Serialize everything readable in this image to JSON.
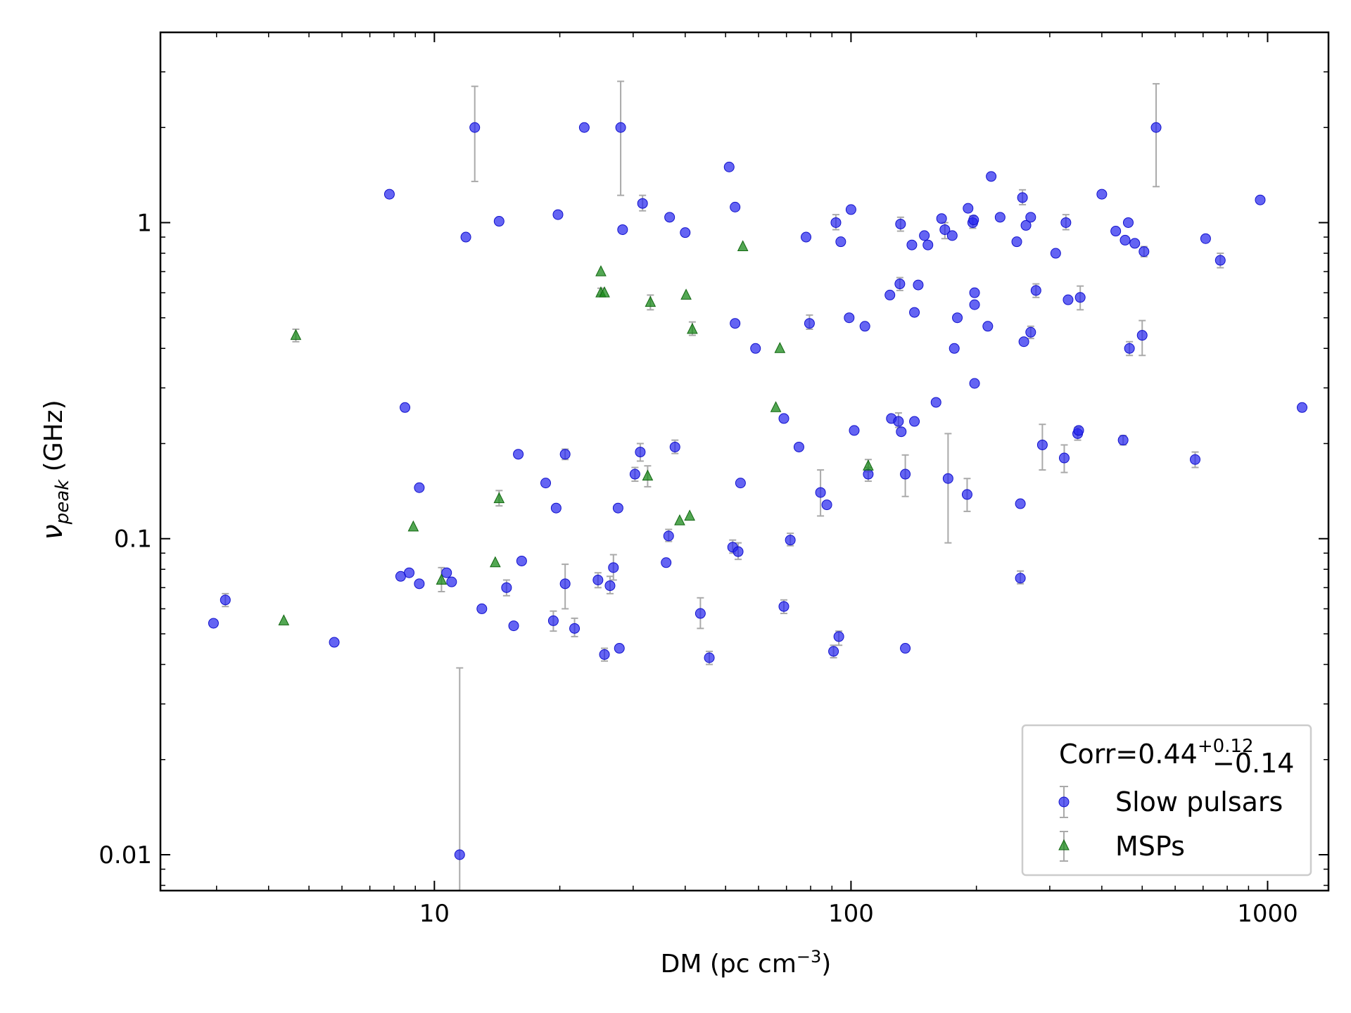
{
  "chart_data": {
    "type": "scatter",
    "xlabel": {
      "main": "DM (pc cm",
      "sup": "−3",
      "close": ")"
    },
    "ylabel": {
      "main": "ν",
      "sub": "peak",
      "unit": " (GHz)"
    },
    "xscale": "log",
    "yscale": "log",
    "xlim": [
      2.2,
      1400
    ],
    "ylim": [
      0.0077,
      4.0
    ],
    "xticks": [
      {
        "value": 10,
        "label": "10"
      },
      {
        "value": 100,
        "label": "100"
      },
      {
        "value": 1000,
        "label": "1000"
      }
    ],
    "yticks": [
      {
        "value": 0.01,
        "label": "0.01"
      },
      {
        "value": 0.1,
        "label": "0.1"
      },
      {
        "value": 1,
        "label": "1"
      }
    ],
    "legend": {
      "position": "bottom-right",
      "title": {
        "main": "Corr=0.44",
        "sup": "+0.12",
        "sub": "−0.14"
      },
      "entries": [
        "Slow pulsars",
        "MSPs"
      ]
    },
    "series": [
      {
        "name": "Slow pulsars",
        "marker": "circle",
        "color": "#2222ee",
        "errorbar_color": "#aaaaaa",
        "points": [
          {
            "x": 2.95,
            "y": 0.054
          },
          {
            "x": 3.15,
            "y": 0.064,
            "ylo": 0.061,
            "yhi": 0.067
          },
          {
            "x": 5.75,
            "y": 0.047
          },
          {
            "x": 7.8,
            "y": 1.23
          },
          {
            "x": 8.3,
            "y": 0.076
          },
          {
            "x": 8.5,
            "y": 0.26
          },
          {
            "x": 8.7,
            "y": 0.078
          },
          {
            "x": 9.2,
            "y": 0.072
          },
          {
            "x": 9.2,
            "y": 0.145
          },
          {
            "x": 10.7,
            "y": 0.078
          },
          {
            "x": 11.0,
            "y": 0.073
          },
          {
            "x": 11.5,
            "y": 0.01,
            "ylo": 0.007,
            "yhi": 0.039
          },
          {
            "x": 11.9,
            "y": 0.9
          },
          {
            "x": 12.5,
            "y": 2.0,
            "ylo": 1.35,
            "yhi": 2.7
          },
          {
            "x": 13.0,
            "y": 0.06
          },
          {
            "x": 14.3,
            "y": 1.01
          },
          {
            "x": 14.9,
            "y": 0.07,
            "ylo": 0.066,
            "yhi": 0.074
          },
          {
            "x": 15.5,
            "y": 0.053
          },
          {
            "x": 15.9,
            "y": 0.185
          },
          {
            "x": 16.2,
            "y": 0.085
          },
          {
            "x": 18.5,
            "y": 0.15
          },
          {
            "x": 19.3,
            "y": 0.055,
            "ylo": 0.051,
            "yhi": 0.059
          },
          {
            "x": 19.6,
            "y": 0.125
          },
          {
            "x": 19.8,
            "y": 1.06
          },
          {
            "x": 20.6,
            "y": 0.185,
            "ylo": 0.178,
            "yhi": 0.192
          },
          {
            "x": 20.6,
            "y": 0.072,
            "ylo": 0.06,
            "yhi": 0.083
          },
          {
            "x": 21.7,
            "y": 0.052,
            "ylo": 0.049,
            "yhi": 0.056
          },
          {
            "x": 22.9,
            "y": 2.0
          },
          {
            "x": 24.7,
            "y": 0.074,
            "ylo": 0.07,
            "yhi": 0.078
          },
          {
            "x": 25.6,
            "y": 0.043,
            "ylo": 0.041,
            "yhi": 0.045
          },
          {
            "x": 26.4,
            "y": 0.071,
            "ylo": 0.067,
            "yhi": 0.076
          },
          {
            "x": 26.9,
            "y": 0.081,
            "ylo": 0.074,
            "yhi": 0.089
          },
          {
            "x": 27.6,
            "y": 0.125
          },
          {
            "x": 27.8,
            "y": 0.045
          },
          {
            "x": 28.0,
            "y": 2.0,
            "ylo": 1.22,
            "yhi": 2.8
          },
          {
            "x": 28.3,
            "y": 0.95
          },
          {
            "x": 30.3,
            "y": 0.16,
            "ylo": 0.152,
            "yhi": 0.168
          },
          {
            "x": 31.2,
            "y": 0.188,
            "ylo": 0.176,
            "yhi": 0.2
          },
          {
            "x": 31.6,
            "y": 1.15,
            "ylo": 1.09,
            "yhi": 1.22
          },
          {
            "x": 36.0,
            "y": 0.084
          },
          {
            "x": 36.5,
            "y": 0.102,
            "ylo": 0.098,
            "yhi": 0.107
          },
          {
            "x": 36.7,
            "y": 1.04
          },
          {
            "x": 37.8,
            "y": 0.195,
            "ylo": 0.186,
            "yhi": 0.205
          },
          {
            "x": 40.0,
            "y": 0.93
          },
          {
            "x": 43.5,
            "y": 0.058,
            "ylo": 0.052,
            "yhi": 0.065
          },
          {
            "x": 45.7,
            "y": 0.042,
            "ylo": 0.04,
            "yhi": 0.044
          },
          {
            "x": 51.0,
            "y": 1.5
          },
          {
            "x": 52.0,
            "y": 0.094,
            "ylo": 0.09,
            "yhi": 0.099
          },
          {
            "x": 52.7,
            "y": 1.12
          },
          {
            "x": 52.7,
            "y": 0.48
          },
          {
            "x": 53.6,
            "y": 0.091,
            "ylo": 0.086,
            "yhi": 0.097
          },
          {
            "x": 54.3,
            "y": 0.15
          },
          {
            "x": 59.0,
            "y": 0.4
          },
          {
            "x": 69.0,
            "y": 0.24
          },
          {
            "x": 69.0,
            "y": 0.061,
            "ylo": 0.058,
            "yhi": 0.064
          },
          {
            "x": 71.5,
            "y": 0.099,
            "ylo": 0.095,
            "yhi": 0.104
          },
          {
            "x": 75.0,
            "y": 0.195
          },
          {
            "x": 78.0,
            "y": 0.9
          },
          {
            "x": 79.5,
            "y": 0.48,
            "ylo": 0.46,
            "yhi": 0.51
          },
          {
            "x": 84.5,
            "y": 0.14,
            "ylo": 0.118,
            "yhi": 0.165
          },
          {
            "x": 87.5,
            "y": 0.128
          },
          {
            "x": 90.8,
            "y": 0.044,
            "ylo": 0.042,
            "yhi": 0.046
          },
          {
            "x": 92.0,
            "y": 1.0,
            "ylo": 0.95,
            "yhi": 1.06
          },
          {
            "x": 93.5,
            "y": 0.049,
            "ylo": 0.046,
            "yhi": 0.051
          },
          {
            "x": 94.5,
            "y": 0.87
          },
          {
            "x": 99.0,
            "y": 0.5
          },
          {
            "x": 100.0,
            "y": 1.1
          },
          {
            "x": 101.8,
            "y": 0.22
          },
          {
            "x": 108.0,
            "y": 0.47
          },
          {
            "x": 110.0,
            "y": 0.16,
            "ylo": 0.152,
            "yhi": 0.168
          },
          {
            "x": 124.0,
            "y": 0.59
          },
          {
            "x": 125.0,
            "y": 0.24
          },
          {
            "x": 130.0,
            "y": 0.235,
            "ylo": 0.225,
            "yhi": 0.25
          },
          {
            "x": 131.0,
            "y": 0.64,
            "ylo": 0.61,
            "yhi": 0.67
          },
          {
            "x": 131.5,
            "y": 0.99,
            "ylo": 0.94,
            "yhi": 1.04
          },
          {
            "x": 132.0,
            "y": 0.218
          },
          {
            "x": 135.0,
            "y": 0.16,
            "ylo": 0.136,
            "yhi": 0.184
          },
          {
            "x": 135.0,
            "y": 0.045
          },
          {
            "x": 140.0,
            "y": 0.85
          },
          {
            "x": 142.0,
            "y": 0.235
          },
          {
            "x": 142.0,
            "y": 0.52
          },
          {
            "x": 145.0,
            "y": 0.635
          },
          {
            "x": 150.0,
            "y": 0.91
          },
          {
            "x": 153.0,
            "y": 0.85
          },
          {
            "x": 160.0,
            "y": 0.27
          },
          {
            "x": 165.0,
            "y": 1.03
          },
          {
            "x": 168.0,
            "y": 0.95,
            "ylo": 0.89,
            "yhi": 1.0
          },
          {
            "x": 171.0,
            "y": 0.155,
            "ylo": 0.097,
            "yhi": 0.215
          },
          {
            "x": 175.0,
            "y": 0.91
          },
          {
            "x": 177.0,
            "y": 0.4
          },
          {
            "x": 180.0,
            "y": 0.5
          },
          {
            "x": 190.0,
            "y": 0.138,
            "ylo": 0.122,
            "yhi": 0.155
          },
          {
            "x": 191.0,
            "y": 1.11
          },
          {
            "x": 196.0,
            "y": 1.0,
            "ylo": 0.96,
            "yhi": 1.05
          },
          {
            "x": 197.0,
            "y": 1.02
          },
          {
            "x": 198.0,
            "y": 0.6
          },
          {
            "x": 198.0,
            "y": 0.55
          },
          {
            "x": 198.0,
            "y": 0.31
          },
          {
            "x": 213.0,
            "y": 0.47
          },
          {
            "x": 217.0,
            "y": 1.4
          },
          {
            "x": 228.0,
            "y": 1.04
          },
          {
            "x": 250.0,
            "y": 0.87
          },
          {
            "x": 255.0,
            "y": 0.129
          },
          {
            "x": 255.0,
            "y": 0.075,
            "ylo": 0.072,
            "yhi": 0.079
          },
          {
            "x": 258.0,
            "y": 1.2,
            "ylo": 1.14,
            "yhi": 1.27
          },
          {
            "x": 260.0,
            "y": 0.42
          },
          {
            "x": 263.0,
            "y": 0.98
          },
          {
            "x": 270.0,
            "y": 1.04
          },
          {
            "x": 270.0,
            "y": 0.45,
            "ylo": 0.43,
            "yhi": 0.47
          },
          {
            "x": 278.0,
            "y": 0.61,
            "ylo": 0.58,
            "yhi": 0.64
          },
          {
            "x": 288.0,
            "y": 0.198,
            "ylo": 0.165,
            "yhi": 0.23
          },
          {
            "x": 310.0,
            "y": 0.8
          },
          {
            "x": 325.0,
            "y": 0.18,
            "ylo": 0.162,
            "yhi": 0.198
          },
          {
            "x": 328.0,
            "y": 1.0,
            "ylo": 0.95,
            "yhi": 1.06
          },
          {
            "x": 332.0,
            "y": 0.57
          },
          {
            "x": 350.0,
            "y": 0.215,
            "ylo": 0.205,
            "yhi": 0.225
          },
          {
            "x": 352.0,
            "y": 0.22
          },
          {
            "x": 355.0,
            "y": 0.58,
            "ylo": 0.53,
            "yhi": 0.63
          },
          {
            "x": 400.0,
            "y": 1.23
          },
          {
            "x": 432.0,
            "y": 0.94
          },
          {
            "x": 450.0,
            "y": 0.205,
            "ylo": 0.198,
            "yhi": 0.212
          },
          {
            "x": 455.0,
            "y": 0.88
          },
          {
            "x": 463.0,
            "y": 1.0
          },
          {
            "x": 466.0,
            "y": 0.4,
            "ylo": 0.38,
            "yhi": 0.42
          },
          {
            "x": 480.0,
            "y": 0.86
          },
          {
            "x": 500.0,
            "y": 0.44,
            "ylo": 0.38,
            "yhi": 0.49
          },
          {
            "x": 505.0,
            "y": 0.81,
            "ylo": 0.78,
            "yhi": 0.84
          },
          {
            "x": 540.0,
            "y": 2.0,
            "ylo": 1.3,
            "yhi": 2.75
          },
          {
            "x": 670.0,
            "y": 0.178,
            "ylo": 0.168,
            "yhi": 0.188
          },
          {
            "x": 710.0,
            "y": 0.89
          },
          {
            "x": 770.0,
            "y": 0.76,
            "ylo": 0.72,
            "yhi": 0.8
          },
          {
            "x": 960.0,
            "y": 1.18
          },
          {
            "x": 1210.0,
            "y": 0.26
          }
        ]
      },
      {
        "name": "MSPs",
        "marker": "triangle",
        "color": "#1a8a1a",
        "errorbar_color": "#aaaaaa",
        "points": [
          {
            "x": 4.35,
            "y": 0.055
          },
          {
            "x": 4.65,
            "y": 0.44,
            "ylo": 0.42,
            "yhi": 0.46
          },
          {
            "x": 8.9,
            "y": 0.109
          },
          {
            "x": 10.4,
            "y": 0.074,
            "ylo": 0.068,
            "yhi": 0.081
          },
          {
            "x": 14.0,
            "y": 0.084
          },
          {
            "x": 14.3,
            "y": 0.134,
            "ylo": 0.127,
            "yhi": 0.142
          },
          {
            "x": 25.1,
            "y": 0.7
          },
          {
            "x": 25.1,
            "y": 0.6,
            "ylo": 0.59,
            "yhi": 0.62
          },
          {
            "x": 25.6,
            "y": 0.6
          },
          {
            "x": 32.5,
            "y": 0.158,
            "ylo": 0.146,
            "yhi": 0.17
          },
          {
            "x": 33.0,
            "y": 0.56,
            "ylo": 0.53,
            "yhi": 0.59
          },
          {
            "x": 38.8,
            "y": 0.114
          },
          {
            "x": 40.2,
            "y": 0.59
          },
          {
            "x": 41.0,
            "y": 0.118
          },
          {
            "x": 41.6,
            "y": 0.46,
            "ylo": 0.44,
            "yhi": 0.485
          },
          {
            "x": 55.0,
            "y": 0.84
          },
          {
            "x": 66.0,
            "y": 0.26
          },
          {
            "x": 67.5,
            "y": 0.4
          },
          {
            "x": 110.0,
            "y": 0.17,
            "ylo": 0.163,
            "yhi": 0.178
          }
        ]
      }
    ]
  }
}
